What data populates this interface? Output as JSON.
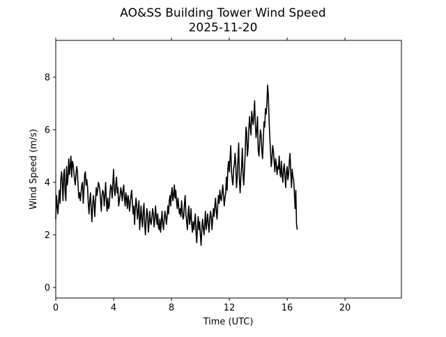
{
  "chart_data": {
    "type": "line",
    "title": "AO&SS Building Tower Wind Speed",
    "subtitle": "2025-11-20",
    "xlabel": "Time (UTC)",
    "ylabel": "Wind Speed (m/s)",
    "xlim": [
      0,
      23.9
    ],
    "ylim": [
      -0.4,
      9.4
    ],
    "xticks": [
      0,
      4,
      8,
      12,
      16,
      20
    ],
    "xtick_labels": [
      "0",
      "4",
      "8",
      "12",
      "16",
      "20"
    ],
    "yticks": [
      0,
      2,
      4,
      6,
      8
    ],
    "ytick_labels": [
      "0",
      "2",
      "4",
      "6",
      "8"
    ],
    "grid": false,
    "line_color": "#000000",
    "series": [
      {
        "x_step_hours": 0.05,
        "values": [
          2.6,
          3.5,
          3.1,
          2.8,
          3.3,
          3.7,
          3.2,
          4.1,
          4.4,
          4.0,
          3.3,
          4.3,
          4.5,
          3.6,
          3.3,
          4.6,
          3.9,
          4.2,
          4.9,
          4.3,
          4.6,
          5.0,
          4.2,
          4.8,
          4.7,
          4.4,
          4.1,
          3.9,
          4.3,
          4.6,
          4.4,
          3.8,
          3.4,
          3.6,
          3.3,
          3.6,
          3.9,
          4.0,
          3.2,
          3.7,
          4.3,
          4.4,
          3.9,
          4.1,
          3.8,
          3.2,
          2.8,
          3.3,
          3.6,
          3.0,
          2.5,
          3.1,
          3.5,
          3.2,
          2.7,
          3.3,
          3.8,
          3.5,
          3.7,
          4.0,
          3.9,
          3.7,
          3.3,
          2.9,
          3.5,
          3.7,
          3.6,
          3.1,
          3.5,
          4.0,
          3.3,
          2.9,
          3.4,
          3.0,
          3.1,
          3.6,
          3.9,
          3.8,
          3.4,
          4.0,
          4.5,
          3.7,
          3.5,
          3.9,
          4.2,
          3.6,
          3.8,
          3.1,
          3.3,
          3.5,
          3.8,
          3.6,
          3.3,
          3.7,
          3.9,
          3.4,
          3.1,
          3.6,
          3.4,
          3.0,
          3.5,
          3.3,
          2.9,
          3.2,
          3.5,
          3.7,
          3.2,
          2.8,
          3.1,
          2.4,
          3.0,
          3.4,
          3.1,
          2.6,
          2.9,
          3.3,
          2.2,
          2.6,
          3.1,
          2.6,
          2.3,
          2.9,
          3.2,
          2.4,
          2.0,
          2.6,
          3.0,
          2.8,
          2.1,
          2.4,
          2.9,
          2.5,
          2.4,
          2.7,
          3.0,
          2.8,
          2.3,
          2.6,
          3.1,
          2.7,
          2.4,
          2.8,
          2.3,
          2.2,
          2.6,
          2.1,
          2.5,
          2.9,
          2.4,
          2.2,
          2.6,
          2.9,
          2.7,
          2.4,
          2.7,
          3.1,
          2.8,
          3.3,
          3.5,
          3.1,
          3.6,
          3.8,
          3.3,
          3.5,
          3.9,
          3.4,
          3.7,
          3.3,
          3.0,
          3.4,
          3.1,
          2.8,
          3.0,
          2.7,
          3.3,
          2.9,
          2.6,
          2.7,
          3.2,
          3.5,
          2.8,
          2.5,
          2.2,
          2.8,
          3.1,
          2.4,
          2.6,
          3.0,
          2.4,
          2.1,
          2.5,
          2.2,
          2.5,
          2.8,
          2.1,
          1.7,
          2.3,
          2.7,
          2.2,
          2.5,
          2.0,
          1.6,
          2.2,
          2.6,
          2.3,
          2.0,
          2.4,
          2.9,
          2.2,
          2.5,
          2.8,
          2.4,
          2.1,
          2.6,
          2.9,
          2.7,
          2.2,
          2.6,
          3.0,
          2.7,
          3.1,
          3.4,
          2.9,
          2.6,
          3.1,
          3.5,
          3.2,
          3.7,
          3.4,
          3.3,
          3.6,
          3.9,
          3.5,
          3.1,
          3.4,
          3.6,
          4.2,
          3.7,
          4.5,
          4.8,
          4.4,
          4.9,
          5.4,
          4.4,
          4.1,
          3.9,
          4.5,
          4.7,
          5.1,
          4.6,
          3.8,
          4.2,
          4.9,
          5.5,
          4.1,
          3.6,
          4.2,
          4.6,
          5.3,
          4.3,
          3.9,
          4.5,
          5.1,
          6.1,
          5.9,
          5.0,
          5.3,
          6.0,
          6.5,
          6.1,
          5.8,
          6.7,
          6.4,
          6.2,
          6.6,
          7.1,
          6.2,
          5.7,
          6.0,
          6.5,
          5.2,
          5.0,
          5.5,
          6.0,
          5.8,
          5.2,
          4.9,
          5.6,
          6.3,
          6.1,
          6.8,
          6.6,
          7.0,
          7.7,
          7.3,
          6.4,
          5.7,
          5.2,
          4.6,
          4.9,
          5.4,
          5.2,
          4.8,
          4.4,
          4.9,
          4.7,
          4.3,
          4.6,
          4.5,
          5.0,
          4.4,
          4.2,
          4.8,
          4.3,
          4.0,
          4.5,
          4.7,
          4.2,
          3.8,
          4.4,
          4.6,
          4.1,
          4.3,
          4.8,
          5.1,
          4.4,
          3.8,
          4.5,
          4.2,
          4.1,
          3.6,
          3.0,
          3.7,
          2.4,
          2.2
        ]
      }
    ]
  }
}
